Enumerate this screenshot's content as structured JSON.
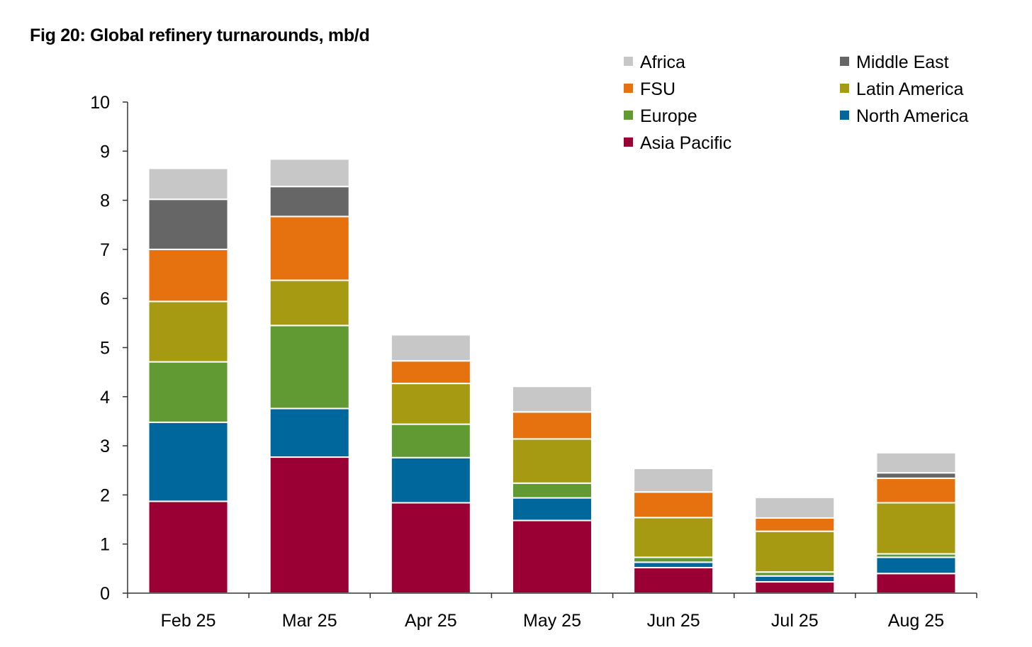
{
  "chart_data": {
    "type": "bar",
    "stacked": true,
    "title": "Fig 20: Global refinery turnarounds, mb/d",
    "categories": [
      "Feb 25",
      "Mar 25",
      "Apr 25",
      "May 25",
      "Jun 25",
      "Jul 25",
      "Aug 25"
    ],
    "ylim": [
      0,
      10
    ],
    "yticks": [
      "0",
      "1",
      "2",
      "3",
      "4",
      "5",
      "6",
      "7",
      "8",
      "9",
      "10"
    ],
    "legend_position": "top-right",
    "series": [
      {
        "name": "Asia Pacific",
        "color": "#9b0034",
        "values": [
          1.87,
          2.77,
          1.84,
          1.48,
          0.52,
          0.23,
          0.4
        ]
      },
      {
        "name": "North America",
        "color": "#00679d",
        "values": [
          1.61,
          0.99,
          0.92,
          0.46,
          0.11,
          0.12,
          0.33
        ]
      },
      {
        "name": "Europe",
        "color": "#619a33",
        "values": [
          1.23,
          1.69,
          0.68,
          0.3,
          0.1,
          0.08,
          0.07
        ]
      },
      {
        "name": "Latin America",
        "color": "#a69a12",
        "values": [
          1.23,
          0.92,
          0.83,
          0.9,
          0.81,
          0.83,
          1.04
        ]
      },
      {
        "name": "FSU",
        "color": "#e5720e",
        "values": [
          1.06,
          1.3,
          0.46,
          0.55,
          0.52,
          0.27,
          0.5
        ]
      },
      {
        "name": "Middle East",
        "color": "#666666",
        "values": [
          1.02,
          0.61,
          0.0,
          0.0,
          0.0,
          0.0,
          0.11
        ]
      },
      {
        "name": "Africa",
        "color": "#c7c7c7",
        "values": [
          0.63,
          0.56,
          0.53,
          0.52,
          0.48,
          0.42,
          0.41
        ]
      }
    ],
    "legend_order": [
      "Africa",
      "Middle East",
      "FSU",
      "Latin America",
      "Europe",
      "North America",
      "Asia Pacific"
    ]
  }
}
